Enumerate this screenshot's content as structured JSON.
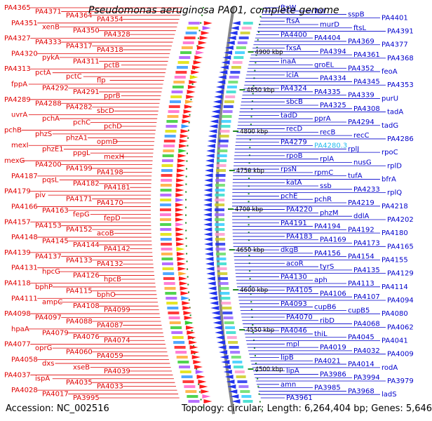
{
  "title": "Pseudomonas aeruginosa PAO1, complete genome",
  "footer": {
    "accession": "Accession: NC_002516",
    "info": "Topology: circular; Length: 6,264,404 bp; Genes: 5,646"
  },
  "colors": {
    "left_label": "#e00000",
    "right_label": "#0000cc",
    "highlight_label": "#22bbee",
    "left_arrows": "#ff1a1a",
    "right_arrows": "#2233ee",
    "backbone": "#888888",
    "dotted_tick": "#228822"
  },
  "scale_ticks": [
    "4900 kbp",
    "4850 kbp",
    "4800 kbp",
    "4750 kbp",
    "4700 kbp",
    "4650 kbp",
    "4600 kbp",
    "4550 kbp",
    "4500 kbp"
  ],
  "left_labels": [
    "PA4365",
    "PA4371",
    "PA4364",
    "PA4354",
    "PA4351",
    "xenB",
    "PA4350",
    "PA4328",
    "PA4327",
    "PA4333",
    "PA4317",
    "PA4318",
    "PA4320",
    "pykA",
    "PA4311",
    "pctB",
    "PA4313",
    "pctA",
    "pctC",
    "flp",
    "fppA",
    "PA4292",
    "PA4291",
    "pprB",
    "PA4289",
    "PA4288",
    "PA4282",
    "sbcD",
    "uvrA",
    "pchA",
    "pchC",
    "pchD",
    "pchB",
    "phzS",
    "phzA1",
    "opmD",
    "mexI",
    "phzE1",
    "ppgL",
    "mexH",
    "mexG",
    "PA4200",
    "PA4199",
    "PA4198",
    "PA4187",
    "pqsL",
    "PA4182",
    "PA4181",
    "PA4179",
    "piv",
    "PA4171",
    "PA4170",
    "PA4166",
    "PA4163",
    "fepG",
    "fepD",
    "PA4157",
    "PA4153",
    "PA4152",
    "acoB",
    "PA4148",
    "PA4145",
    "PA4144",
    "PA4142",
    "PA4139",
    "PA4137",
    "PA4133",
    "PA4132",
    "PA4131",
    "hpcG",
    "PA4126",
    "hpcB",
    "PA4118",
    "bphP",
    "PA4115",
    "bphO",
    "PA4111",
    "ampC",
    "PA4108",
    "PA4099",
    "PA4098",
    "PA4097",
    "PA4088",
    "PA4087",
    "hpaA",
    "PA4079",
    "PA4076",
    "PA4074",
    "PA4077",
    "oprG",
    "PA4060",
    "PA4059",
    "PA4058",
    "dxs",
    "xseB",
    "PA4039",
    "PA4037",
    "ispA",
    "PA4035",
    "PA4033",
    "PA4028",
    "PA4017",
    "PA3995"
  ],
  "right_labels": [
    "ftsW",
    "ftsI",
    "sspB",
    "PA4401",
    "ftsA",
    "murD",
    "ftsL",
    "PA4391",
    "PA4400",
    "PA4404",
    "PA4369",
    "PA4377",
    "fxsA",
    "PA4394",
    "PA4361",
    "PA4368",
    "inaA",
    "groEL",
    "PA4352",
    "feoA",
    "iciA",
    "PA4334",
    "PA4345",
    "PA4353",
    "PA4324",
    "PA4335",
    "PA4339",
    "purU",
    "sbcB",
    "PA4325",
    "PA4308",
    "tadA",
    "tadD",
    "pprA",
    "PA4294",
    "tadG",
    "recD",
    "recB",
    "recC",
    "PA4286",
    "PA4279",
    "PA4280.3",
    "rplJ",
    "rpoC",
    "rpoB",
    "rplA",
    "nusG",
    "rplD",
    "rpsN",
    "rpmC",
    "tufA",
    "bfrA",
    "katA",
    "ssb",
    "PA4233",
    "rplQ",
    "pchE",
    "pchR",
    "PA4219",
    "PA4218",
    "PA4220",
    "phzM",
    "ddlA",
    "PA4202",
    "PA4191",
    "PA4194",
    "PA4192",
    "PA4180",
    "PA4183",
    "PA4169",
    "PA4173",
    "PA4165",
    "dkgB",
    "PA4156",
    "PA4154",
    "PA4155",
    "acoR",
    "tyrS",
    "PA4135",
    "PA4129",
    "PA4130",
    "aph",
    "PA4113",
    "PA4114",
    "PA4105",
    "PA4106",
    "PA4107",
    "PA4094",
    "PA4093",
    "cupB6",
    "cupB5",
    "PA4080",
    "PA4070",
    "ribD",
    "PA4068",
    "PA4062",
    "PA4046",
    "thiL",
    "PA4045",
    "PA4041",
    "mpl",
    "PA4019",
    "PA4032",
    "PA4009",
    "lipB",
    "PA4021",
    "PA4014",
    "rodA",
    "lipA",
    "PA3986",
    "PA3994",
    "PA3979",
    "amn",
    "PA3985",
    "PA3968",
    "ladS",
    "PA3961"
  ]
}
